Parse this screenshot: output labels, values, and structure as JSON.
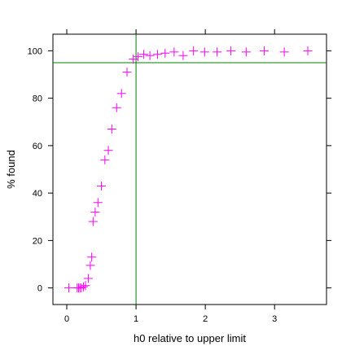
{
  "chart_data": {
    "type": "scatter",
    "xlabel": "h0 relative to upper limit",
    "ylabel": "% found",
    "xlim": [
      -0.2,
      3.75
    ],
    "ylim": [
      -7,
      107
    ],
    "x_ticks": [
      0,
      1,
      2,
      3
    ],
    "x_tick_labels": [
      "0",
      "1",
      "2",
      "3"
    ],
    "y_ticks": [
      0,
      20,
      40,
      60,
      80,
      100
    ],
    "y_tick_labels": [
      "0",
      "20",
      "40",
      "60",
      "80",
      "100"
    ],
    "grid": false,
    "marker": "plus",
    "marker_color": "#ff00ff",
    "reference_line_color": "#008000",
    "reference_lines": {
      "vertical_x": 1,
      "horizontal_y": 95
    },
    "points": [
      {
        "x": 0.03,
        "y": 0
      },
      {
        "x": 0.15,
        "y": 0
      },
      {
        "x": 0.17,
        "y": 0
      },
      {
        "x": 0.19,
        "y": 0
      },
      {
        "x": 0.21,
        "y": 0
      },
      {
        "x": 0.24,
        "y": 0.5
      },
      {
        "x": 0.27,
        "y": 1
      },
      {
        "x": 0.31,
        "y": 4
      },
      {
        "x": 0.34,
        "y": 9.5
      },
      {
        "x": 0.36,
        "y": 13
      },
      {
        "x": 0.38,
        "y": 28
      },
      {
        "x": 0.41,
        "y": 32
      },
      {
        "x": 0.45,
        "y": 36
      },
      {
        "x": 0.5,
        "y": 43
      },
      {
        "x": 0.55,
        "y": 54
      },
      {
        "x": 0.6,
        "y": 58
      },
      {
        "x": 0.65,
        "y": 67
      },
      {
        "x": 0.72,
        "y": 76
      },
      {
        "x": 0.79,
        "y": 82
      },
      {
        "x": 0.87,
        "y": 91
      },
      {
        "x": 0.96,
        "y": 96.5
      },
      {
        "x": 1.03,
        "y": 97.5
      },
      {
        "x": 1.11,
        "y": 98.5
      },
      {
        "x": 1.2,
        "y": 98
      },
      {
        "x": 1.31,
        "y": 98.5
      },
      {
        "x": 1.42,
        "y": 99
      },
      {
        "x": 1.55,
        "y": 99.5
      },
      {
        "x": 1.68,
        "y": 98
      },
      {
        "x": 1.83,
        "y": 100
      },
      {
        "x": 1.99,
        "y": 99.5
      },
      {
        "x": 2.17,
        "y": 99.5
      },
      {
        "x": 2.37,
        "y": 100
      },
      {
        "x": 2.59,
        "y": 99.5
      },
      {
        "x": 2.85,
        "y": 100
      },
      {
        "x": 3.14,
        "y": 99.5
      },
      {
        "x": 3.48,
        "y": 100
      }
    ]
  }
}
